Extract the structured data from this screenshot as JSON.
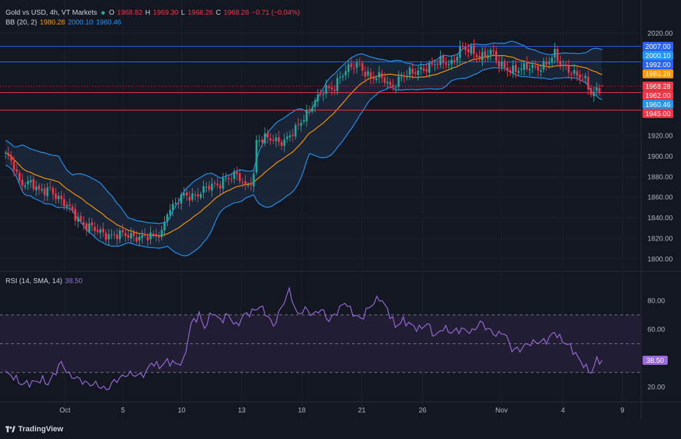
{
  "legend": {
    "symbol": "Gold vs USD, 4h, VT Markets",
    "open_label": "O",
    "open": "1968.82",
    "high_label": "H",
    "high": "1969.30",
    "low_label": "L",
    "low": "1968.26",
    "close_label": "C",
    "close": "1968.28",
    "change": "−0.71 (−0.04%)",
    "bb_label": "BB (20, 2)",
    "bb_basis": "1980.28",
    "bb_upper": "2000.10",
    "bb_lower": "1960.46",
    "rsi_label": "RSI (14, SMA, 14)",
    "rsi_value": "38.50"
  },
  "logo": {
    "text": "TradingView"
  },
  "colors": {
    "background": "#131722",
    "grid": "#1e222d",
    "bull": "#26a69a",
    "bear": "#f23645",
    "bb_band": "#2196f3",
    "bb_basis": "#ff9800",
    "bb_fill": "#1e2a3f",
    "rsi_line": "#9c6ade",
    "rsi_fill": "#241f36",
    "level_blue": "#2962ff",
    "level_red": "#f23645"
  },
  "chart_data": [
    {
      "type": "candlestick",
      "title": "Gold vs USD, 4h, VT Markets",
      "y_axis": {
        "ticks": [
          1800,
          1820,
          1840,
          1860,
          1880,
          1900,
          1920,
          2020
        ],
        "ylim": [
          1790,
          2025
        ]
      },
      "x_axis": {
        "ticks": [
          "Oct",
          "5",
          "10",
          "13",
          "18",
          "21",
          "26",
          "Nov",
          "4",
          "9"
        ]
      },
      "price_keypoints": [
        [
          0,
          1900
        ],
        [
          3,
          1890
        ],
        [
          5,
          1876
        ],
        [
          9,
          1874
        ],
        [
          12,
          1864
        ],
        [
          16,
          1870
        ],
        [
          20,
          1855
        ],
        [
          24,
          1846
        ],
        [
          29,
          1832
        ],
        [
          33,
          1826
        ],
        [
          38,
          1824
        ],
        [
          43,
          1822
        ],
        [
          48,
          1823
        ],
        [
          53,
          1820
        ],
        [
          56,
          1826
        ],
        [
          58,
          1848
        ],
        [
          61,
          1853
        ],
        [
          64,
          1861
        ],
        [
          67,
          1862
        ],
        [
          72,
          1868
        ],
        [
          76,
          1872
        ],
        [
          79,
          1880
        ],
        [
          83,
          1880
        ],
        [
          86,
          1870
        ],
        [
          89,
          1882
        ],
        [
          90,
          1916
        ],
        [
          95,
          1916
        ],
        [
          100,
          1916
        ],
        [
          104,
          1924
        ],
        [
          107,
          1938
        ],
        [
          110,
          1952
        ],
        [
          114,
          1962
        ],
        [
          118,
          1968
        ],
        [
          120,
          1980
        ],
        [
          123,
          1985
        ],
        [
          127,
          1988
        ],
        [
          131,
          1978
        ],
        [
          135,
          1975
        ],
        [
          138,
          1968
        ],
        [
          142,
          1978
        ],
        [
          146,
          1980
        ],
        [
          150,
          1987
        ],
        [
          155,
          1990
        ],
        [
          160,
          1992
        ],
        [
          163,
          2005
        ],
        [
          166,
          2002
        ],
        [
          170,
          1998
        ],
        [
          174,
          2002
        ],
        [
          177,
          1988
        ],
        [
          181,
          1986
        ],
        [
          185,
          1984
        ],
        [
          188,
          1986
        ],
        [
          192,
          1988
        ],
        [
          195,
          1992
        ],
        [
          197,
          1998
        ],
        [
          199,
          1990
        ],
        [
          202,
          1986
        ],
        [
          205,
          1978
        ],
        [
          208,
          1972
        ],
        [
          210,
          1962
        ],
        [
          212,
          1966
        ],
        [
          214,
          1968
        ]
      ],
      "current": {
        "open": 1968.82,
        "high": 1969.3,
        "low": 1968.26,
        "close": 1968.28
      },
      "bollinger": {
        "length": 20,
        "mult": 2,
        "upper": 2000.1,
        "basis": 1980.28,
        "lower": 1960.46
      },
      "horizontal_levels": [
        {
          "value": 2007.0,
          "color": "#2962ff"
        },
        {
          "value": 1992.0,
          "color": "#2962ff"
        },
        {
          "value": 1962.0,
          "color": "#f23645"
        },
        {
          "value": 1945.0,
          "color": "#f23645"
        }
      ],
      "price_labels": [
        {
          "text": "2007.00",
          "value": 2007.0,
          "color": "#2962ff"
        },
        {
          "text": "2000.10",
          "value": 2000.1,
          "color": "#2196f3"
        },
        {
          "text": "1992.00",
          "value": 1992.0,
          "color": "#2962ff"
        },
        {
          "text": "1980.28",
          "value": 1980.28,
          "color": "#ff9800"
        },
        {
          "text": "1968.28",
          "value": 1968.28,
          "color": "#f23645"
        },
        {
          "text": "1962.00",
          "value": 1962.0,
          "color": "#f23645"
        },
        {
          "text": "1960.46",
          "value": 1960.46,
          "color": "#2196f3"
        },
        {
          "text": "1945.00",
          "value": 1945.0,
          "color": "#f23645"
        }
      ]
    },
    {
      "type": "line",
      "title": "RSI (14, SMA, 14)",
      "y_axis": {
        "ticks": [
          20,
          60,
          80
        ],
        "ylim": [
          12,
          92
        ]
      },
      "levels": [
        70,
        50,
        30
      ],
      "current_value": 38.5,
      "keypoints": [
        [
          0,
          30
        ],
        [
          3,
          27
        ],
        [
          6,
          22
        ],
        [
          10,
          23
        ],
        [
          14,
          25
        ],
        [
          16,
          22
        ],
        [
          19,
          31
        ],
        [
          21,
          37
        ],
        [
          24,
          28
        ],
        [
          27,
          26
        ],
        [
          31,
          22
        ],
        [
          34,
          22
        ],
        [
          38,
          18
        ],
        [
          41,
          24
        ],
        [
          46,
          29
        ],
        [
          51,
          28
        ],
        [
          53,
          30
        ],
        [
          55,
          37
        ],
        [
          58,
          34
        ],
        [
          61,
          38
        ],
        [
          64,
          36
        ],
        [
          67,
          37
        ],
        [
          70,
          64
        ],
        [
          73,
          70
        ],
        [
          75,
          61
        ],
        [
          78,
          72
        ],
        [
          81,
          66
        ],
        [
          84,
          70
        ],
        [
          87,
          62
        ],
        [
          90,
          70
        ],
        [
          93,
          72
        ],
        [
          96,
          76
        ],
        [
          99,
          69
        ],
        [
          101,
          62
        ],
        [
          104,
          75
        ],
        [
          107,
          87
        ],
        [
          110,
          70
        ],
        [
          113,
          74
        ],
        [
          116,
          70
        ],
        [
          119,
          74
        ],
        [
          122,
          66
        ],
        [
          125,
          72
        ],
        [
          128,
          79
        ],
        [
          131,
          71
        ],
        [
          134,
          67
        ],
        [
          137,
          75
        ],
        [
          141,
          82
        ],
        [
          144,
          74
        ],
        [
          147,
          62
        ],
        [
          150,
          66
        ],
        [
          153,
          63
        ],
        [
          156,
          60
        ],
        [
          159,
          64
        ],
        [
          162,
          55
        ],
        [
          165,
          61
        ],
        [
          168,
          58
        ],
        [
          172,
          60
        ],
        [
          176,
          58
        ],
        [
          179,
          65
        ],
        [
          182,
          60
        ],
        [
          185,
          56
        ],
        [
          188,
          58
        ],
        [
          191,
          46
        ],
        [
          194,
          46
        ],
        [
          197,
          50
        ],
        [
          200,
          51
        ],
        [
          204,
          52
        ],
        [
          207,
          58
        ],
        [
          210,
          52
        ],
        [
          213,
          48
        ],
        [
          216,
          40
        ],
        [
          219,
          33
        ],
        [
          221,
          30
        ],
        [
          223,
          39
        ],
        [
          225,
          38.5
        ]
      ]
    }
  ]
}
